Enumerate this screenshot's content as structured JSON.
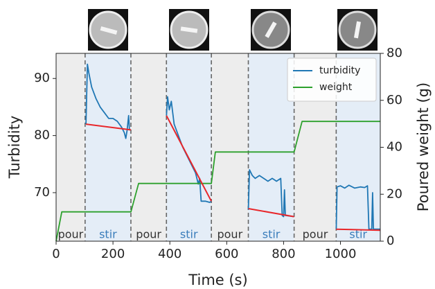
{
  "chart_data": {
    "type": "line",
    "xlabel": "Time (s)",
    "ylabel": "Turbidity",
    "y2label": "Poured weight (g)",
    "xlim": [
      0,
      1140
    ],
    "ylim": [
      61.5,
      94.4
    ],
    "y2lim": [
      0,
      80
    ],
    "xticks": [
      0,
      200,
      400,
      600,
      800,
      1000
    ],
    "yticks": [
      70,
      80,
      90
    ],
    "y2ticks": [
      0,
      20,
      40,
      60,
      80
    ],
    "legend": "upper right",
    "regions": [
      {
        "label": "pour",
        "start": 0,
        "end": 102,
        "color": "#ededed"
      },
      {
        "label": "stir",
        "start": 102,
        "end": 263,
        "color": "#e4edf7"
      },
      {
        "label": "pour",
        "start": 263,
        "end": 388,
        "color": "#ededed"
      },
      {
        "label": "stir",
        "start": 388,
        "end": 546,
        "color": "#e4edf7"
      },
      {
        "label": "pour",
        "start": 546,
        "end": 676,
        "color": "#ededed"
      },
      {
        "label": "stir",
        "start": 676,
        "end": 837,
        "color": "#e4edf7"
      },
      {
        "label": "pour",
        "start": 837,
        "end": 985,
        "color": "#ededed"
      },
      {
        "label": "stir",
        "start": 985,
        "end": 1140,
        "color": "#e4edf7"
      }
    ],
    "series": [
      {
        "name": "turbidity",
        "color": "#1f77b4",
        "x": [
          105,
          110,
          115,
          125,
          140,
          155,
          170,
          185,
          200,
          215,
          230,
          240,
          245,
          250,
          255,
          258,
          263,
          null,
          388,
          392,
          398,
          405,
          415,
          430,
          445,
          460,
          475,
          490,
          500,
          505,
          510,
          525,
          540,
          546,
          null,
          676,
          680,
          690,
          700,
          715,
          730,
          745,
          760,
          775,
          790,
          795,
          800,
          803,
          806,
          837,
          null,
          985,
          988,
          1000,
          1015,
          1030,
          1050,
          1070,
          1085,
          1095,
          1100,
          1110,
          1113,
          1116,
          1140
        ],
        "values": [
          82,
          92.5,
          91,
          88.5,
          86.5,
          85,
          84,
          83,
          83,
          82.5,
          81.5,
          80.5,
          79.5,
          81,
          83.5,
          81,
          81,
          null,
          83.5,
          86.8,
          84.5,
          86,
          82,
          80,
          78,
          76.5,
          75,
          73.5,
          71.5,
          72.5,
          68.5,
          68.5,
          68.3,
          68.5,
          null,
          67,
          74,
          73,
          72.5,
          73,
          72.5,
          72,
          72.5,
          72,
          72.5,
          66,
          65.8,
          70.5,
          66,
          65.8,
          null,
          63.6,
          71,
          71.2,
          70.8,
          71.3,
          70.8,
          71,
          70.9,
          71.2,
          63.6,
          63.6,
          70,
          63.6,
          63.6
        ]
      },
      {
        "name": "weight",
        "color": "#2ca02c",
        "axis": "y2",
        "x": [
          0,
          20,
          263,
          290,
          546,
          560,
          837,
          865,
          1140
        ],
        "values": [
          0,
          12.5,
          12.5,
          24.6,
          24.6,
          38,
          38,
          51,
          51
        ]
      }
    ],
    "fits": {
      "color": "#e8262a",
      "lines": [
        {
          "x": [
            105,
            263
          ],
          "values": [
            82,
            81
          ]
        },
        {
          "x": [
            388,
            546
          ],
          "values": [
            83.5,
            68.5
          ]
        },
        {
          "x": [
            676,
            837
          ],
          "values": [
            67.2,
            65.8
          ]
        },
        {
          "x": [
            985,
            1140
          ],
          "values": [
            63.6,
            63.4
          ]
        }
      ]
    }
  }
}
